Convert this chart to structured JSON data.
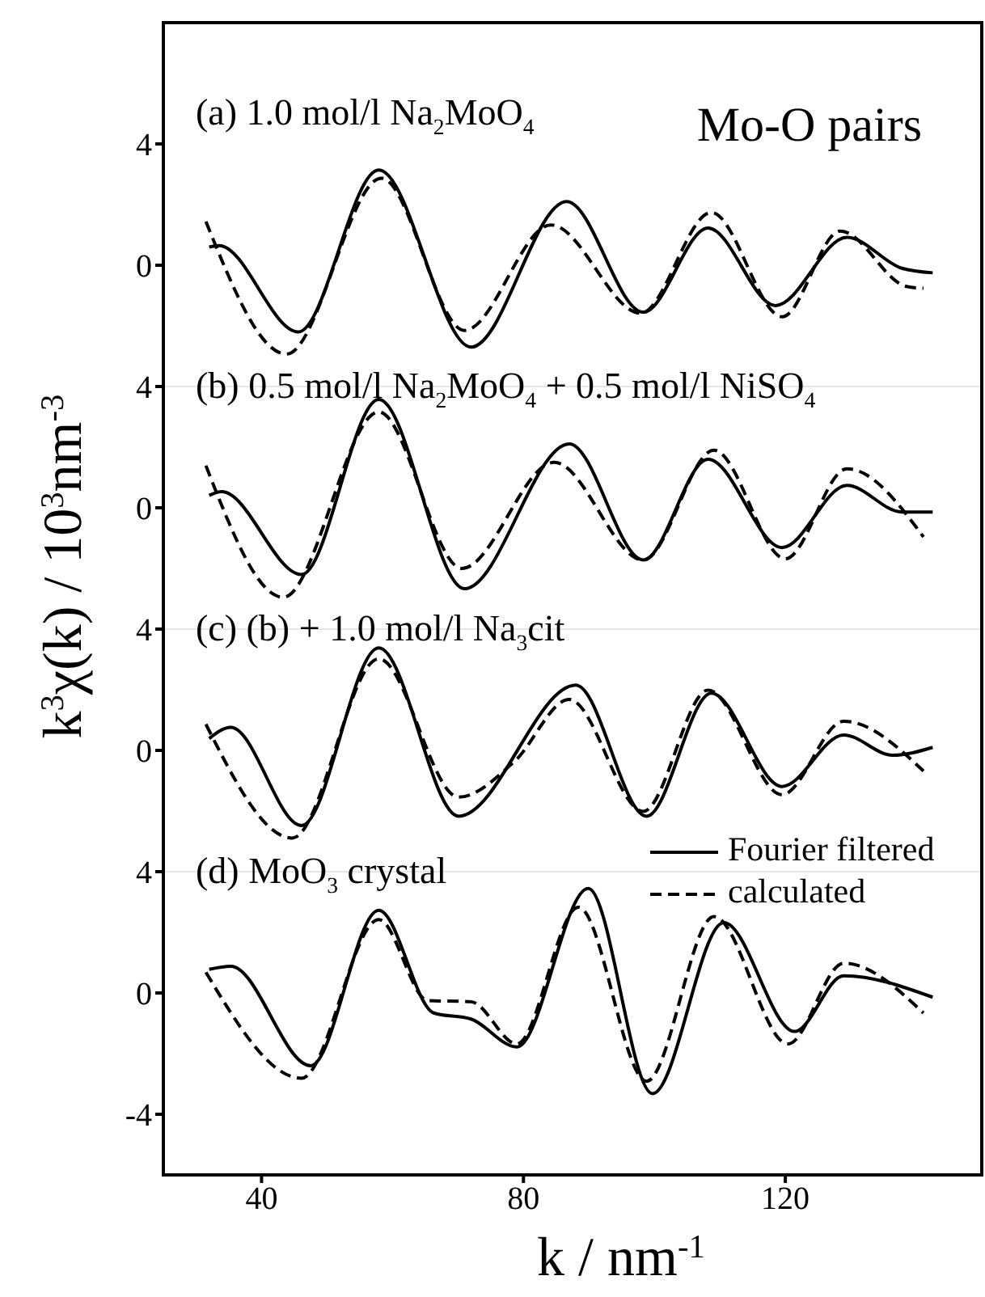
{
  "chart_data": [
    {
      "type": "line",
      "title": "Mo-O pairs",
      "ylabel": "k$^{3}$χ(k) / 10$^{3}$nm$^{-3}$",
      "xlim": [
        25,
        150
      ],
      "ylim": [
        -4,
        8
      ],
      "yticks": [
        0,
        4
      ],
      "tick_labels": "y",
      "marker": "none",
      "annotations": [
        "(a) 1.0 mol/l Na$_{2}$MoO$_{4}$"
      ],
      "series": [
        {
          "color": "#000000",
          "line_style": "solid",
          "x": [
            32,
            33.5,
            45.6,
            57.9,
            72,
            86.6,
            98.3,
            108.2,
            118.5,
            129.4,
            137.8,
            142.5
          ],
          "values": [
            0.6,
            0.65,
            -2.2,
            3.14,
            -2.7,
            2.1,
            -1.55,
            1.23,
            -1.33,
            0.92,
            -0.1,
            -0.25
          ]
        },
        {
          "color": "#000000",
          "line_style": "dashed",
          "x": [
            31.5,
            43.8,
            58.3,
            71,
            84.2,
            97.9,
            108.7,
            119.5,
            128.4,
            138.5,
            141.1
          ],
          "values": [
            1.44,
            -2.93,
            2.87,
            -2.15,
            1.33,
            -1.58,
            1.74,
            -1.7,
            1.13,
            -0.7,
            -0.76
          ]
        }
      ]
    },
    {
      "type": "line",
      "xlim": [
        25,
        150
      ],
      "ylim": [
        -4,
        4
      ],
      "yticks": [
        0,
        4
      ],
      "tick_labels": "y",
      "marker": "none",
      "annotations": [
        "(b) 0.5 mol/l Na$_{2}$MoO$_{4}$ + 0.5 mol/l NiSO$_{4}$"
      ],
      "series": [
        {
          "color": "#000000",
          "line_style": "solid",
          "x": [
            32,
            33.9,
            46.1,
            57.9,
            71,
            87,
            98.3,
            108.2,
            119.5,
            129.4,
            137.8,
            142.5
          ],
          "values": [
            0.41,
            0.53,
            -2.2,
            3.57,
            -2.67,
            2.11,
            -1.72,
            1.6,
            -1.31,
            0.74,
            -0.14,
            -0.14
          ]
        },
        {
          "color": "#000000",
          "line_style": "dashed",
          "x": [
            31.5,
            43.3,
            57.9,
            70.6,
            84.7,
            98.3,
            109.1,
            120,
            129.4,
            141.1
          ],
          "values": [
            1.39,
            -2.95,
            3.16,
            -2,
            1.5,
            -1.72,
            1.9,
            -1.68,
            1.29,
            -0.96
          ]
        }
      ]
    },
    {
      "type": "line",
      "xlim": [
        25,
        150
      ],
      "ylim": [
        -4,
        4
      ],
      "yticks": [
        0,
        4
      ],
      "tick_labels": "y",
      "marker": "none",
      "annotations": [
        "(c) (b) + 1.0 mol/l Na$_{3}$cit"
      ],
      "series": [
        {
          "color": "#000000",
          "line_style": "solid",
          "x": [
            32,
            35.3,
            46.1,
            57.9,
            70.1,
            88,
            98.8,
            108.7,
            119.5,
            128.9,
            136.4,
            142.5
          ],
          "values": [
            0.39,
            0.76,
            -2.48,
            3.38,
            -2.17,
            2.15,
            -2.17,
            1.89,
            -1.19,
            0.51,
            -0.16,
            0.1
          ]
        },
        {
          "color": "#000000",
          "line_style": "dashed",
          "x": [
            31.5,
            44.7,
            57.9,
            70.1,
            78.6,
            87,
            98.3,
            108.2,
            119.5,
            128.9,
            141.1
          ],
          "values": [
            0.86,
            -2.89,
            3.02,
            -1.54,
            -0.37,
            1.68,
            -2.01,
            1.99,
            -1.46,
            0.96,
            -0.68
          ]
        }
      ]
    },
    {
      "type": "line",
      "xlabel": "k / nm$^{-1}$",
      "xlim": [
        25,
        150
      ],
      "xticks": [
        40,
        80,
        120
      ],
      "ylim": [
        -6,
        4
      ],
      "yticks": [
        -4,
        0,
        4
      ],
      "legend": "top right",
      "marker": "none",
      "annotations": [
        "(d) MoO$_{3}$ crystal"
      ],
      "series": [
        {
          "name": "Fourier filtered",
          "color": "#000000",
          "line_style": "solid",
          "x": [
            32,
            35.3,
            47.5,
            57.9,
            66.3,
            72,
            79,
            89.9,
            99.7,
            110.6,
            121.4,
            128.9,
            142.5
          ],
          "values": [
            0.78,
            0.88,
            -2.4,
            2.73,
            -0.66,
            -0.86,
            -1.78,
            3.45,
            -3.32,
            2.32,
            -1.27,
            0.57,
            -0.14
          ]
        },
        {
          "name": "calculated",
          "color": "#000000",
          "line_style": "dashed",
          "x": [
            31.5,
            46.1,
            57.9,
            65.4,
            72,
            79,
            88.4,
            98.8,
            109.1,
            120.4,
            128.9,
            141.1
          ],
          "values": [
            0.68,
            -2.81,
            2.42,
            -0.25,
            -0.29,
            -1.68,
            2.83,
            -2.91,
            2.52,
            -1.68,
            0.98,
            -0.66
          ]
        }
      ]
    }
  ]
}
